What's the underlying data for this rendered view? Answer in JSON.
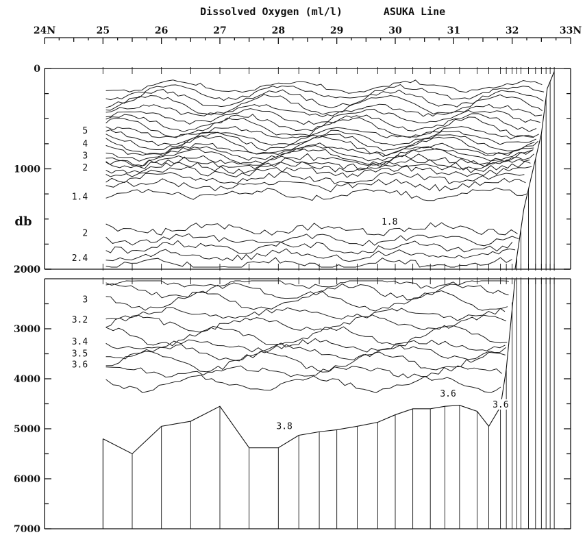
{
  "chart_data": {
    "type": "contour section",
    "title": "Dissolved Oxygen (ml/l)",
    "section_name": "ASUKA Line",
    "ylabel": "db",
    "x_unit": "latitude (°N)",
    "xlim": [
      24,
      33
    ],
    "x_ticks": [
      {
        "value": 24,
        "label": "24N"
      },
      {
        "value": 25,
        "label": "25"
      },
      {
        "value": 26,
        "label": "26"
      },
      {
        "value": 27,
        "label": "27"
      },
      {
        "value": 28,
        "label": "28"
      },
      {
        "value": 29,
        "label": "29"
      },
      {
        "value": 30,
        "label": "30"
      },
      {
        "value": 31,
        "label": "31"
      },
      {
        "value": 32,
        "label": "32"
      },
      {
        "value": 33,
        "label": "33N"
      }
    ],
    "upper_panel": {
      "ylim": [
        0,
        2000
      ],
      "y_ticks": [
        {
          "value": 0,
          "label": "0"
        },
        {
          "value": 1000,
          "label": "1000"
        },
        {
          "value": 2000,
          "label": "2000"
        }
      ]
    },
    "lower_panel": {
      "ylim": [
        2000,
        7000
      ],
      "y_ticks": [
        {
          "value": 2000,
          "label": "2000"
        },
        {
          "value": 3000,
          "label": "3000"
        },
        {
          "value": 4000,
          "label": "4000"
        },
        {
          "value": 5000,
          "label": "5000"
        },
        {
          "value": 6000,
          "label": "6000"
        },
        {
          "value": 7000,
          "label": "7000"
        }
      ]
    },
    "contour_labels": [
      {
        "text": "5",
        "lat": 24.6,
        "db": 620
      },
      {
        "text": "4",
        "lat": 24.6,
        "db": 750
      },
      {
        "text": "3",
        "lat": 24.6,
        "db": 870
      },
      {
        "text": "2",
        "lat": 24.6,
        "db": 990
      },
      {
        "text": "1.4",
        "lat": 24.6,
        "db": 1280
      },
      {
        "text": "1.8",
        "lat": 29.9,
        "db": 1530
      },
      {
        "text": "2",
        "lat": 24.6,
        "db": 1640
      },
      {
        "text": "2.4",
        "lat": 24.6,
        "db": 1890
      },
      {
        "text": "3",
        "lat": 24.6,
        "db": 2420
      },
      {
        "text": "3.2",
        "lat": 24.6,
        "db": 2820
      },
      {
        "text": "3.4",
        "lat": 24.6,
        "db": 3260
      },
      {
        "text": "3.5",
        "lat": 24.6,
        "db": 3500
      },
      {
        "text": "3.6",
        "lat": 24.6,
        "db": 3720
      },
      {
        "text": "3.6",
        "lat": 30.9,
        "db": 4300
      },
      {
        "text": "3.6",
        "lat": 31.8,
        "db": 4520
      },
      {
        "text": "3.8",
        "lat": 28.1,
        "db": 4950
      }
    ],
    "bottom_depth": [
      {
        "lat": 25.0,
        "db": 5200
      },
      {
        "lat": 25.5,
        "db": 5500
      },
      {
        "lat": 26.0,
        "db": 4950
      },
      {
        "lat": 26.5,
        "db": 4850
      },
      {
        "lat": 27.0,
        "db": 4550
      },
      {
        "lat": 27.5,
        "db": 5380
      },
      {
        "lat": 28.0,
        "db": 5380
      },
      {
        "lat": 28.35,
        "db": 5130
      },
      {
        "lat": 28.7,
        "db": 5060
      },
      {
        "lat": 29.0,
        "db": 5020
      },
      {
        "lat": 29.35,
        "db": 4950
      },
      {
        "lat": 29.7,
        "db": 4870
      },
      {
        "lat": 30.0,
        "db": 4720
      },
      {
        "lat": 30.3,
        "db": 4600
      },
      {
        "lat": 30.6,
        "db": 4600
      },
      {
        "lat": 30.85,
        "db": 4550
      },
      {
        "lat": 31.1,
        "db": 4530
      },
      {
        "lat": 31.4,
        "db": 4650
      },
      {
        "lat": 31.6,
        "db": 4950
      },
      {
        "lat": 31.8,
        "db": 4560
      },
      {
        "lat": 31.9,
        "db": 3800
      },
      {
        "lat": 32.05,
        "db": 2000
      },
      {
        "lat": 32.2,
        "db": 1400
      },
      {
        "lat": 32.5,
        "db": 650
      },
      {
        "lat": 32.6,
        "db": 200
      },
      {
        "lat": 32.72,
        "db": 30
      }
    ],
    "stations_lat": [
      25.0,
      25.5,
      26.0,
      26.5,
      27.0,
      27.5,
      28.0,
      28.35,
      28.7,
      29.0,
      29.35,
      29.7,
      30.0,
      30.3,
      30.6,
      30.85,
      31.1,
      31.4,
      31.6,
      31.8,
      31.9,
      32.0,
      32.08,
      32.15,
      32.28,
      32.4,
      32.5,
      32.58,
      32.65,
      32.72
    ]
  }
}
